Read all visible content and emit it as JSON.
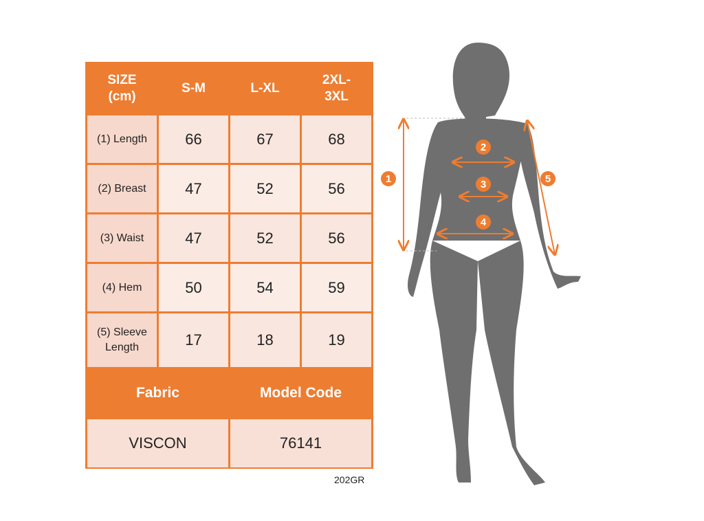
{
  "table": {
    "headers": [
      "SIZE\n(cm)",
      "S-M",
      "L-XL",
      "2XL-\n3XL"
    ],
    "rows": [
      {
        "label": "(1) Length",
        "values": [
          "66",
          "67",
          "68"
        ]
      },
      {
        "label": "(2) Breast",
        "values": [
          "47",
          "52",
          "56"
        ]
      },
      {
        "label": "(3) Waist",
        "values": [
          "47",
          "52",
          "56"
        ]
      },
      {
        "label": "(4) Hem",
        "values": [
          "50",
          "54",
          "59"
        ]
      },
      {
        "label": "(5) Sleeve\nLength",
        "values": [
          "17",
          "18",
          "19"
        ]
      }
    ],
    "fabric_label": "Fabric",
    "model_code_label": "Model Code",
    "fabric_value": "VISCON",
    "model_code_value": "76141"
  },
  "code_note": "202GR",
  "figure": {
    "markers": [
      "1",
      "2",
      "3",
      "4",
      "5"
    ],
    "accent_color": "#ed7d31",
    "silhouette_color": "#6f6f6f"
  }
}
